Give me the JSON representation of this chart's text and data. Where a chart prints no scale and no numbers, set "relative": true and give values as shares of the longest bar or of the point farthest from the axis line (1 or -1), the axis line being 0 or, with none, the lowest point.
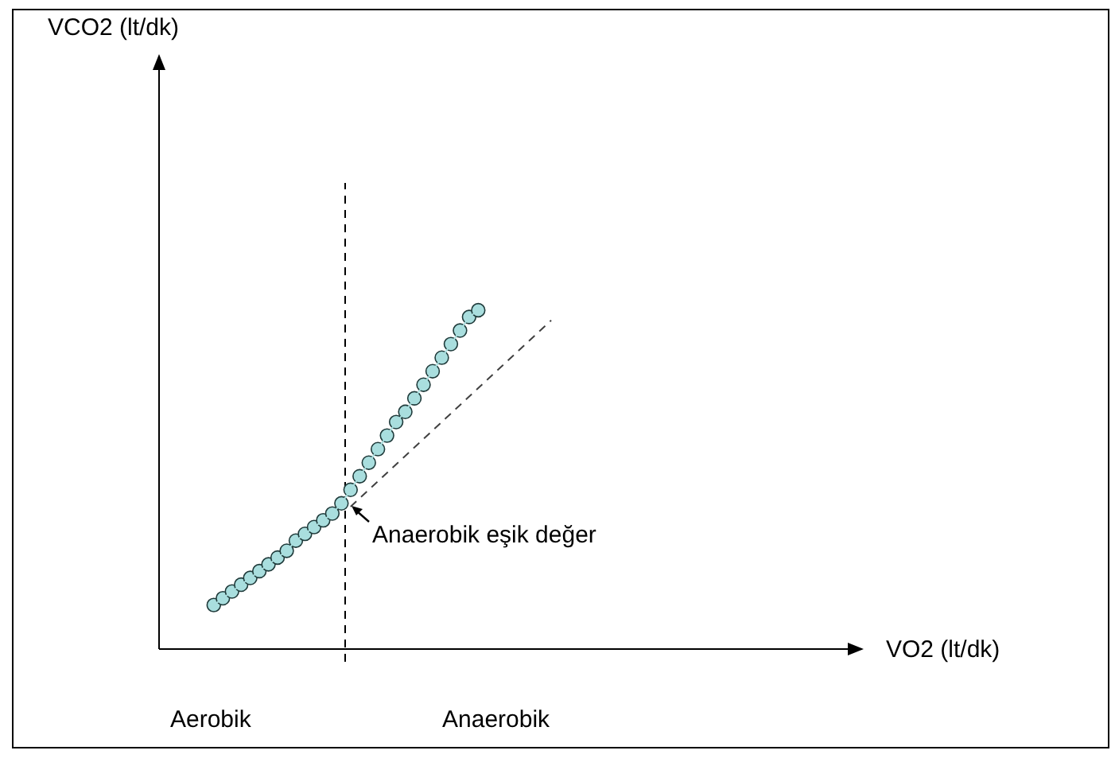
{
  "chart_data": {
    "type": "line",
    "relative": true,
    "xlabel": "VO2 (lt/dk)",
    "marker": "circle",
    "categories": [
      null,
      null,
      null,
      null,
      null,
      null,
      null,
      null,
      null,
      null,
      null,
      null,
      null,
      null,
      null,
      null,
      null,
      null,
      null,
      null,
      null,
      null,
      null,
      null,
      null,
      null,
      null,
      null,
      null,
      null,
      null,
      null,
      null,
      null,
      null,
      null,
      null,
      null,
      null,
      null,
      null,
      null,
      null,
      null,
      null,
      null,
      null,
      null,
      null,
      null,
      null,
      null,
      null,
      null,
      null,
      null,
      null,
      null,
      null,
      null,
      null,
      null,
      null,
      null,
      null,
      null,
      null,
      null,
      null,
      null,
      null,
      null,
      null,
      null,
      null,
      null
    ],
    "series": [
      {
        "color": "#a9dede",
        "values": [
          null,
          null,
          null,
          null,
          null,
          null,
          0.13,
          0.15,
          0.17,
          0.19,
          0.21,
          0.23,
          0.25,
          0.27,
          0.29,
          0.32,
          0.34,
          0.36,
          0.38,
          0.4,
          0.43,
          0.47,
          0.51,
          0.55,
          0.59,
          0.63,
          0.67,
          0.7,
          0.74,
          0.78,
          0.82,
          0.86,
          0.9,
          0.94,
          0.98,
          1,
          null,
          null,
          null,
          null,
          null,
          null,
          null,
          null,
          null,
          null,
          null,
          null,
          null,
          null,
          null,
          null,
          null,
          null,
          null,
          null,
          null,
          null,
          null,
          null,
          null,
          null,
          null,
          null,
          null,
          null,
          null,
          null,
          null,
          null,
          null,
          null,
          null,
          null,
          null,
          null
        ]
      },
      {
        "type": "line",
        "marker": "none",
        "color": "#404040",
        "line_style": "dashed",
        "values": [
          null,
          null,
          null,
          null,
          null,
          null,
          null,
          null,
          null,
          null,
          null,
          null,
          null,
          null,
          null,
          null,
          null,
          null,
          null,
          null,
          null,
          0.42,
          null,
          null,
          null,
          null,
          null,
          null,
          null,
          null,
          null,
          null,
          null,
          null,
          null,
          null,
          null,
          null,
          null,
          null,
          null,
          null,
          null,
          0.97,
          null,
          null,
          null,
          null,
          null,
          null,
          null,
          null,
          null,
          null,
          null,
          null,
          null,
          null,
          null,
          null,
          null,
          null,
          null,
          null,
          null,
          null,
          null,
          null,
          null,
          null,
          null,
          null,
          null,
          null,
          null,
          null
        ]
      }
    ],
    "annotations": [
      "VCO2 (lt/dk)",
      "Anaerobik eşik değer",
      "Aerobik",
      "Anaerobik"
    ]
  }
}
